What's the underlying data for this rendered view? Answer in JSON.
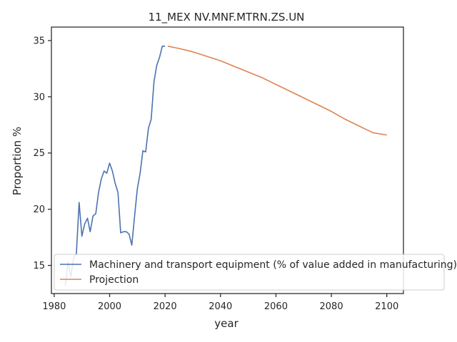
{
  "chart_data": {
    "type": "line",
    "title": "11_MEX NV.MNF.MTRN.ZS.UN",
    "xlabel": "year",
    "ylabel": "Proportion %",
    "xlim": [
      1979,
      2106
    ],
    "ylim": [
      12.5,
      36.2
    ],
    "xticks": [
      1980,
      2000,
      2020,
      2040,
      2060,
      2080,
      2100
    ],
    "yticks": [
      15,
      20,
      25,
      30,
      35
    ],
    "grid": false,
    "legend_position": "lower-right",
    "series": [
      {
        "name": "Machinery and transport equipment (% of value added in manufacturing)",
        "color": "#4c72b0",
        "x": [
          1984,
          1985,
          1986,
          1987,
          1988,
          1989,
          1990,
          1991,
          1992,
          1993,
          1994,
          1995,
          1996,
          1997,
          1998,
          1999,
          2000,
          2001,
          2002,
          2003,
          2004,
          2005,
          2006,
          2007,
          2008,
          2009,
          2010,
          2011,
          2012,
          2013,
          2014,
          2015,
          2016,
          2017,
          2018,
          2019,
          2020
        ],
        "y": [
          13.2,
          15.3,
          14.0,
          15.7,
          16.0,
          20.6,
          17.6,
          18.7,
          19.2,
          18.0,
          19.4,
          19.6,
          21.5,
          22.7,
          23.4,
          23.2,
          24.1,
          23.4,
          22.3,
          21.5,
          17.9,
          18.0,
          18.0,
          17.8,
          16.8,
          19.4,
          21.8,
          23.2,
          25.2,
          25.1,
          27.2,
          28.0,
          31.3,
          32.8,
          33.5,
          34.5,
          34.5
        ]
      },
      {
        "name": "Projection",
        "color": "#dd8452",
        "x": [
          2021,
          2025,
          2030,
          2035,
          2040,
          2045,
          2050,
          2055,
          2060,
          2065,
          2070,
          2075,
          2080,
          2085,
          2090,
          2095,
          2100
        ],
        "y": [
          34.5,
          34.3,
          34.0,
          33.6,
          33.2,
          32.7,
          32.2,
          31.7,
          31.1,
          30.5,
          29.9,
          29.3,
          28.7,
          28.0,
          27.4,
          26.8,
          26.6
        ]
      }
    ]
  }
}
